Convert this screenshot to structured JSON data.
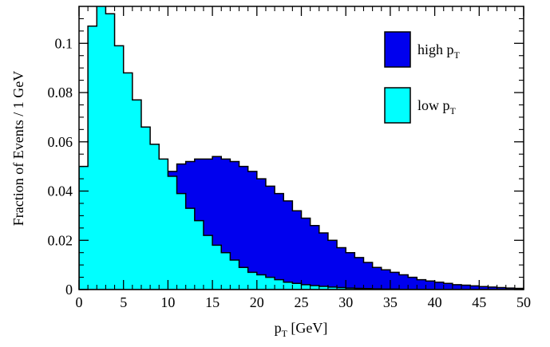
{
  "chart_data": {
    "type": "area",
    "title": "",
    "xlabel": "p",
    "xlabel_sub": "T",
    "xlabel_suffix": " [GeV]",
    "ylabel": "Fraction of Events / 1 GeV",
    "xlim": [
      0,
      50
    ],
    "ylim": [
      0,
      0.115
    ],
    "x_ticks": [
      "0",
      "5",
      "10",
      "15",
      "20",
      "25",
      "30",
      "35",
      "40",
      "45",
      "50"
    ],
    "y_ticks": [
      "0",
      "0.02",
      "0.04",
      "0.06",
      "0.08",
      "0.1"
    ],
    "bin_width": 1,
    "grid": false,
    "legend_position": "top-right",
    "series": [
      {
        "name": "high p_T",
        "label_main": "high p",
        "label_sub": "T",
        "color": "#0000ee",
        "values": [
          0.0,
          0.002,
          0.005,
          0.01,
          0.016,
          0.022,
          0.028,
          0.034,
          0.039,
          0.044,
          0.048,
          0.051,
          0.052,
          0.053,
          0.053,
          0.054,
          0.053,
          0.052,
          0.05,
          0.048,
          0.045,
          0.042,
          0.039,
          0.036,
          0.032,
          0.029,
          0.026,
          0.023,
          0.02,
          0.017,
          0.015,
          0.013,
          0.011,
          0.009,
          0.008,
          0.007,
          0.006,
          0.005,
          0.004,
          0.0035,
          0.003,
          0.0025,
          0.002,
          0.0018,
          0.0015,
          0.0012,
          0.001,
          0.0008,
          0.0006,
          0.0005
        ]
      },
      {
        "name": "low p_T",
        "label_main": "low p",
        "label_sub": "T",
        "color": "#00ffff",
        "values": [
          0.05,
          0.107,
          0.116,
          0.112,
          0.099,
          0.088,
          0.077,
          0.066,
          0.059,
          0.053,
          0.046,
          0.039,
          0.033,
          0.028,
          0.022,
          0.018,
          0.015,
          0.012,
          0.009,
          0.007,
          0.006,
          0.005,
          0.004,
          0.003,
          0.0025,
          0.002,
          0.0016,
          0.0013,
          0.001,
          0.0008,
          0.0006,
          0.0005,
          0.0004,
          0.0003,
          0.0002,
          0.0002,
          0.0001,
          0.0001,
          0.0001,
          0.0001,
          0.0,
          0.0,
          0.0,
          0.0,
          0.0,
          0.0,
          0.0,
          0.0,
          0.0,
          0.0
        ]
      }
    ]
  }
}
